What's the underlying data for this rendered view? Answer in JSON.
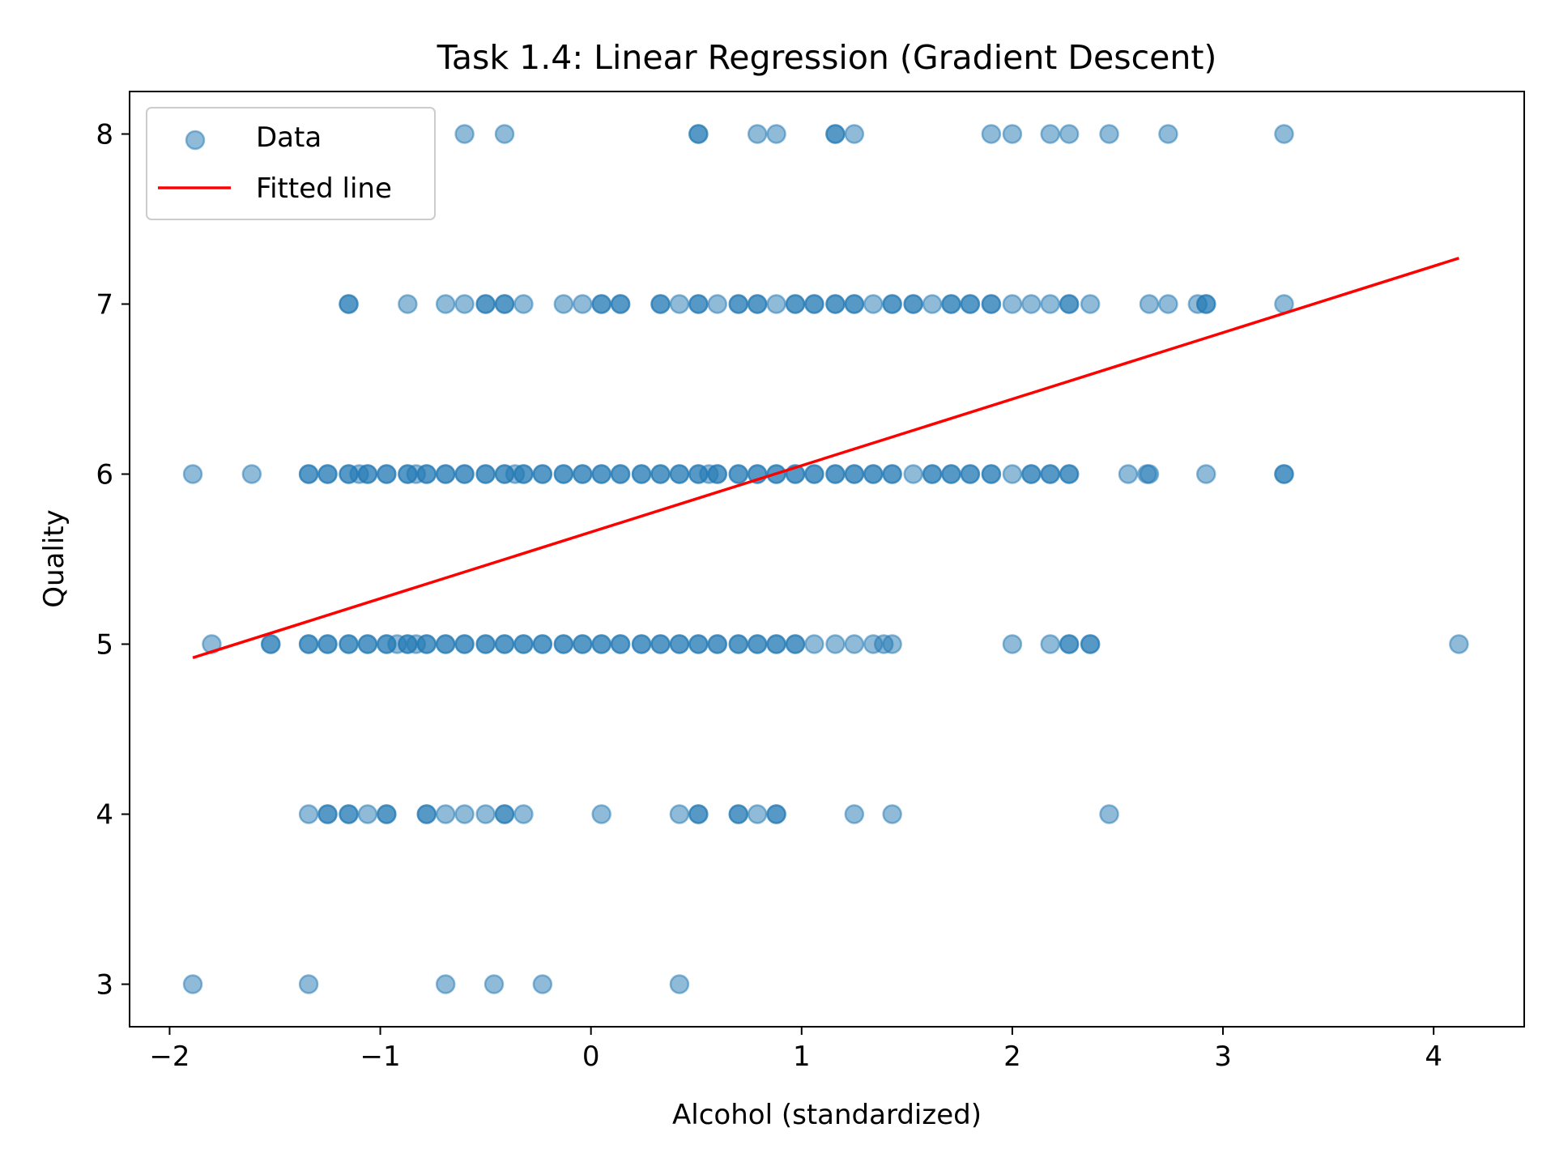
{
  "chart_data": {
    "type": "scatter",
    "title": "Task 1.4: Linear Regression (Gradient Descent)",
    "xlabel": "Alcohol (standardized)",
    "ylabel": "Quality",
    "xlim": [
      -2.19,
      4.43
    ],
    "ylim": [
      2.75,
      8.25
    ],
    "xticks": [
      -2,
      -1,
      0,
      1,
      2,
      3,
      4
    ],
    "xtick_labels": [
      "−2",
      "−1",
      "0",
      "1",
      "2",
      "3",
      "4"
    ],
    "yticks": [
      3,
      4,
      5,
      6,
      7,
      8
    ],
    "ytick_labels": [
      "3",
      "4",
      "5",
      "6",
      "7",
      "8"
    ],
    "grid": false,
    "legend": {
      "position": "top-left",
      "entries": [
        {
          "label": "Data",
          "kind": "marker",
          "color": "#1f77b4"
        },
        {
          "label": "Fitted line",
          "kind": "line",
          "color": "#ff0000"
        }
      ]
    },
    "series": [
      {
        "name": "Data",
        "kind": "scatter",
        "color": "#1f77b4",
        "alpha": 0.5,
        "points": [
          [
            -0.6,
            8
          ],
          [
            -0.41,
            8
          ],
          [
            0.51,
            8
          ],
          [
            0.51,
            8
          ],
          [
            0.79,
            8
          ],
          [
            0.88,
            8
          ],
          [
            1.16,
            8
          ],
          [
            1.16,
            8
          ],
          [
            1.25,
            8
          ],
          [
            1.9,
            8
          ],
          [
            2.0,
            8
          ],
          [
            2.18,
            8
          ],
          [
            2.27,
            8
          ],
          [
            2.46,
            8
          ],
          [
            2.74,
            8
          ],
          [
            3.29,
            8
          ],
          [
            -1.15,
            7
          ],
          [
            -1.15,
            7
          ],
          [
            -0.87,
            7
          ],
          [
            -0.69,
            7
          ],
          [
            -0.6,
            7
          ],
          [
            -0.5,
            7
          ],
          [
            -0.5,
            7
          ],
          [
            -0.41,
            7
          ],
          [
            -0.41,
            7
          ],
          [
            -0.32,
            7
          ],
          [
            -0.13,
            7
          ],
          [
            -0.04,
            7
          ],
          [
            0.05,
            7
          ],
          [
            0.05,
            7
          ],
          [
            0.14,
            7
          ],
          [
            0.14,
            7
          ],
          [
            0.33,
            7
          ],
          [
            0.33,
            7
          ],
          [
            0.42,
            7
          ],
          [
            0.51,
            7
          ],
          [
            0.51,
            7
          ],
          [
            0.6,
            7
          ],
          [
            0.7,
            7
          ],
          [
            0.7,
            7
          ],
          [
            0.79,
            7
          ],
          [
            0.79,
            7
          ],
          [
            0.88,
            7
          ],
          [
            0.97,
            7
          ],
          [
            0.97,
            7
          ],
          [
            1.06,
            7
          ],
          [
            1.06,
            7
          ],
          [
            1.16,
            7
          ],
          [
            1.16,
            7
          ],
          [
            1.25,
            7
          ],
          [
            1.25,
            7
          ],
          [
            1.34,
            7
          ],
          [
            1.43,
            7
          ],
          [
            1.43,
            7
          ],
          [
            1.53,
            7
          ],
          [
            1.53,
            7
          ],
          [
            1.62,
            7
          ],
          [
            1.71,
            7
          ],
          [
            1.71,
            7
          ],
          [
            1.8,
            7
          ],
          [
            1.8,
            7
          ],
          [
            1.9,
            7
          ],
          [
            1.9,
            7
          ],
          [
            2.0,
            7
          ],
          [
            2.09,
            7
          ],
          [
            2.18,
            7
          ],
          [
            2.27,
            7
          ],
          [
            2.27,
            7
          ],
          [
            2.37,
            7
          ],
          [
            2.65,
            7
          ],
          [
            2.74,
            7
          ],
          [
            2.88,
            7
          ],
          [
            2.92,
            7
          ],
          [
            2.92,
            7
          ],
          [
            3.29,
            7
          ],
          [
            -1.89,
            6
          ],
          [
            -1.61,
            6
          ],
          [
            -1.34,
            6
          ],
          [
            -1.34,
            6
          ],
          [
            -1.25,
            6
          ],
          [
            -1.25,
            6
          ],
          [
            -1.15,
            6
          ],
          [
            -1.15,
            6
          ],
          [
            -1.1,
            6
          ],
          [
            -1.06,
            6
          ],
          [
            -1.06,
            6
          ],
          [
            -0.97,
            6
          ],
          [
            -0.97,
            6
          ],
          [
            -0.87,
            6
          ],
          [
            -0.87,
            6
          ],
          [
            -0.83,
            6
          ],
          [
            -0.78,
            6
          ],
          [
            -0.78,
            6
          ],
          [
            -0.69,
            6
          ],
          [
            -0.69,
            6
          ],
          [
            -0.6,
            6
          ],
          [
            -0.6,
            6
          ],
          [
            -0.5,
            6
          ],
          [
            -0.5,
            6
          ],
          [
            -0.41,
            6
          ],
          [
            -0.41,
            6
          ],
          [
            -0.36,
            6
          ],
          [
            -0.32,
            6
          ],
          [
            -0.32,
            6
          ],
          [
            -0.23,
            6
          ],
          [
            -0.23,
            6
          ],
          [
            -0.13,
            6
          ],
          [
            -0.13,
            6
          ],
          [
            -0.04,
            6
          ],
          [
            -0.04,
            6
          ],
          [
            0.05,
            6
          ],
          [
            0.05,
            6
          ],
          [
            0.14,
            6
          ],
          [
            0.14,
            6
          ],
          [
            0.24,
            6
          ],
          [
            0.24,
            6
          ],
          [
            0.33,
            6
          ],
          [
            0.33,
            6
          ],
          [
            0.42,
            6
          ],
          [
            0.42,
            6
          ],
          [
            0.51,
            6
          ],
          [
            0.51,
            6
          ],
          [
            0.56,
            6
          ],
          [
            0.6,
            6
          ],
          [
            0.6,
            6
          ],
          [
            0.7,
            6
          ],
          [
            0.7,
            6
          ],
          [
            0.79,
            6
          ],
          [
            0.79,
            6
          ],
          [
            0.88,
            6
          ],
          [
            0.88,
            6
          ],
          [
            0.97,
            6
          ],
          [
            0.97,
            6
          ],
          [
            1.06,
            6
          ],
          [
            1.06,
            6
          ],
          [
            1.16,
            6
          ],
          [
            1.16,
            6
          ],
          [
            1.25,
            6
          ],
          [
            1.25,
            6
          ],
          [
            1.34,
            6
          ],
          [
            1.34,
            6
          ],
          [
            1.43,
            6
          ],
          [
            1.43,
            6
          ],
          [
            1.53,
            6
          ],
          [
            1.62,
            6
          ],
          [
            1.62,
            6
          ],
          [
            1.71,
            6
          ],
          [
            1.71,
            6
          ],
          [
            1.8,
            6
          ],
          [
            1.8,
            6
          ],
          [
            1.9,
            6
          ],
          [
            1.9,
            6
          ],
          [
            2.0,
            6
          ],
          [
            2.09,
            6
          ],
          [
            2.09,
            6
          ],
          [
            2.18,
            6
          ],
          [
            2.18,
            6
          ],
          [
            2.27,
            6
          ],
          [
            2.27,
            6
          ],
          [
            2.55,
            6
          ],
          [
            2.64,
            6
          ],
          [
            2.65,
            6
          ],
          [
            2.92,
            6
          ],
          [
            3.29,
            6
          ],
          [
            3.29,
            6
          ],
          [
            -1.8,
            5
          ],
          [
            -1.52,
            5
          ],
          [
            -1.52,
            5
          ],
          [
            -1.34,
            5
          ],
          [
            -1.34,
            5
          ],
          [
            -1.25,
            5
          ],
          [
            -1.25,
            5
          ],
          [
            -1.15,
            5
          ],
          [
            -1.15,
            5
          ],
          [
            -1.06,
            5
          ],
          [
            -1.06,
            5
          ],
          [
            -0.97,
            5
          ],
          [
            -0.97,
            5
          ],
          [
            -0.92,
            5
          ],
          [
            -0.87,
            5
          ],
          [
            -0.87,
            5
          ],
          [
            -0.83,
            5
          ],
          [
            -0.78,
            5
          ],
          [
            -0.78,
            5
          ],
          [
            -0.69,
            5
          ],
          [
            -0.69,
            5
          ],
          [
            -0.6,
            5
          ],
          [
            -0.6,
            5
          ],
          [
            -0.5,
            5
          ],
          [
            -0.5,
            5
          ],
          [
            -0.41,
            5
          ],
          [
            -0.41,
            5
          ],
          [
            -0.32,
            5
          ],
          [
            -0.32,
            5
          ],
          [
            -0.23,
            5
          ],
          [
            -0.23,
            5
          ],
          [
            -0.13,
            5
          ],
          [
            -0.13,
            5
          ],
          [
            -0.04,
            5
          ],
          [
            -0.04,
            5
          ],
          [
            0.05,
            5
          ],
          [
            0.05,
            5
          ],
          [
            0.14,
            5
          ],
          [
            0.14,
            5
          ],
          [
            0.24,
            5
          ],
          [
            0.24,
            5
          ],
          [
            0.33,
            5
          ],
          [
            0.33,
            5
          ],
          [
            0.42,
            5
          ],
          [
            0.42,
            5
          ],
          [
            0.51,
            5
          ],
          [
            0.51,
            5
          ],
          [
            0.6,
            5
          ],
          [
            0.6,
            5
          ],
          [
            0.7,
            5
          ],
          [
            0.7,
            5
          ],
          [
            0.79,
            5
          ],
          [
            0.79,
            5
          ],
          [
            0.88,
            5
          ],
          [
            0.88,
            5
          ],
          [
            0.97,
            5
          ],
          [
            0.97,
            5
          ],
          [
            1.06,
            5
          ],
          [
            1.16,
            5
          ],
          [
            1.25,
            5
          ],
          [
            1.34,
            5
          ],
          [
            1.39,
            5
          ],
          [
            1.43,
            5
          ],
          [
            2.0,
            5
          ],
          [
            2.18,
            5
          ],
          [
            2.27,
            5
          ],
          [
            2.27,
            5
          ],
          [
            2.37,
            5
          ],
          [
            2.37,
            5
          ],
          [
            4.12,
            5
          ],
          [
            -1.34,
            4
          ],
          [
            -1.25,
            4
          ],
          [
            -1.25,
            4
          ],
          [
            -1.15,
            4
          ],
          [
            -1.15,
            4
          ],
          [
            -1.06,
            4
          ],
          [
            -0.97,
            4
          ],
          [
            -0.97,
            4
          ],
          [
            -0.78,
            4
          ],
          [
            -0.78,
            4
          ],
          [
            -0.69,
            4
          ],
          [
            -0.6,
            4
          ],
          [
            -0.5,
            4
          ],
          [
            -0.41,
            4
          ],
          [
            -0.41,
            4
          ],
          [
            -0.32,
            4
          ],
          [
            0.05,
            4
          ],
          [
            0.42,
            4
          ],
          [
            0.51,
            4
          ],
          [
            0.51,
            4
          ],
          [
            0.7,
            4
          ],
          [
            0.7,
            4
          ],
          [
            0.79,
            4
          ],
          [
            0.88,
            4
          ],
          [
            0.88,
            4
          ],
          [
            1.25,
            4
          ],
          [
            1.43,
            4
          ],
          [
            2.46,
            4
          ],
          [
            -1.89,
            3
          ],
          [
            -1.34,
            3
          ],
          [
            -0.69,
            3
          ],
          [
            -0.46,
            3
          ],
          [
            -0.23,
            3
          ],
          [
            0.42,
            3
          ]
        ]
      },
      {
        "name": "Fitted line",
        "kind": "line",
        "color": "#ff0000",
        "x": [
          -1.89,
          4.12
        ],
        "y": [
          4.92,
          7.27
        ]
      }
    ]
  }
}
